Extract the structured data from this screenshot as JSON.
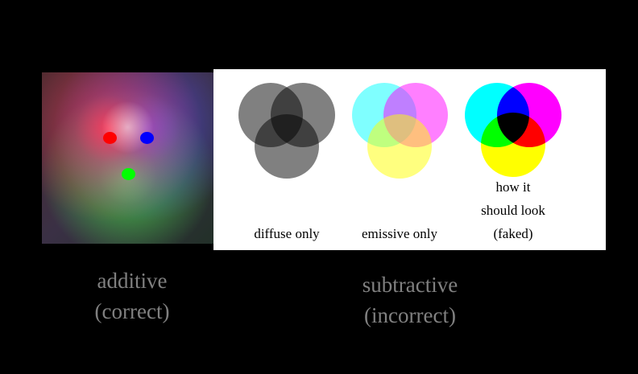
{
  "panels": {
    "additive": {
      "caption_line1": "additive",
      "caption_line2": "(correct)",
      "light_colors": [
        "#ff0000",
        "#0000ff",
        "#00ff00"
      ]
    },
    "subtractive": {
      "caption_line1": "subtractive",
      "caption_line2": "(incorrect)",
      "diagrams": [
        {
          "label": "diffuse only",
          "colors": [
            "#808080",
            "#808080",
            "#808080"
          ]
        },
        {
          "label": "emissive only",
          "colors": [
            "#00ffff",
            "#ff00ff",
            "#ffff00"
          ]
        },
        {
          "label_line1": "how it",
          "label_line2": "should look",
          "label_line3": "(faked)",
          "colors": [
            "#00ffff",
            "#ff00ff",
            "#ffff00"
          ]
        }
      ]
    }
  }
}
